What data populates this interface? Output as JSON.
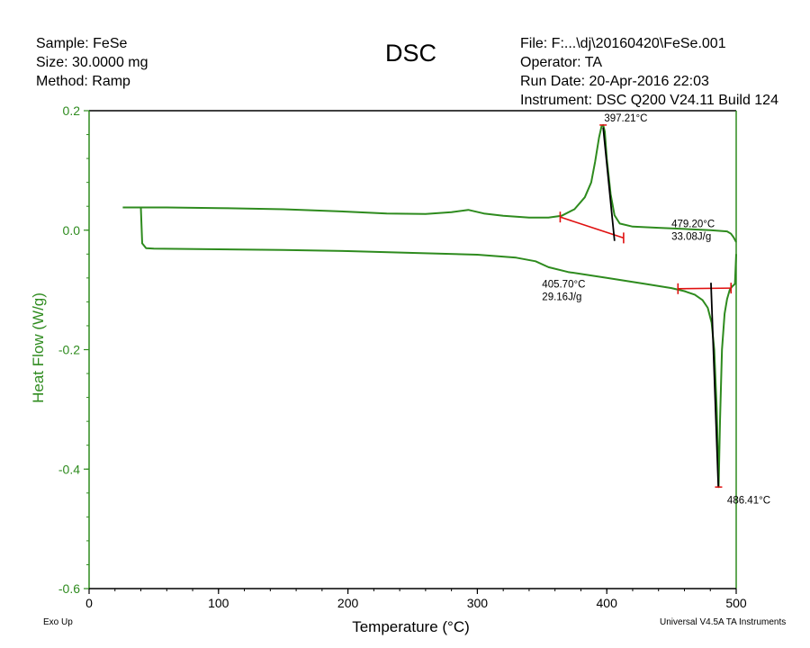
{
  "header": {
    "sample": "Sample: FeSe",
    "size": "Size:  30.0000 mg",
    "method": "Method: Ramp",
    "file": "File: F:...\\dj\\20160420\\FeSe.001",
    "operator": "Operator: TA",
    "run_date": "Run Date: 20-Apr-2016 22:03",
    "instrument": "Instrument: DSC Q200 V24.11 Build 124"
  },
  "footer": {
    "exo": "Exo Up",
    "software": "Universal V4.5A TA Instruments"
  },
  "colors": {
    "curve": "#2e8b1e",
    "axis": "#2e8b1e",
    "baseline": "#e01010",
    "tangent": "#000000"
  },
  "chart_data": {
    "type": "line",
    "title": "DSC",
    "xlabel": "Temperature (°C)",
    "ylabel": "Heat Flow (W/g)",
    "xlim": [
      0,
      500
    ],
    "ylim": [
      -0.6,
      0.2
    ],
    "xticks": [
      0,
      100,
      200,
      300,
      400,
      500
    ],
    "yticks": [
      0.2,
      0.0,
      -0.2,
      -0.4,
      -0.6
    ],
    "xtick_labels": [
      "0",
      "100",
      "200",
      "300",
      "400",
      "500"
    ],
    "ytick_labels": [
      "0.2",
      "0.0",
      "-0.2",
      "-0.4",
      "-0.6"
    ],
    "grid": false,
    "series": [
      {
        "x": [
          26,
          40,
          60,
          100,
          150,
          200,
          230,
          260,
          280,
          293,
          305,
          320,
          340,
          355,
          365,
          375,
          383,
          388,
          391,
          394,
          396,
          397.2,
          398.5,
          400,
          403,
          406,
          410,
          420,
          440,
          460,
          480,
          493,
          496,
          498,
          500
        ],
        "y": [
          0.038,
          0.038,
          0.038,
          0.037,
          0.035,
          0.031,
          0.028,
          0.027,
          0.03,
          0.034,
          0.028,
          0.024,
          0.021,
          0.021,
          0.024,
          0.035,
          0.055,
          0.08,
          0.115,
          0.155,
          0.174,
          0.176,
          0.165,
          0.12,
          0.06,
          0.025,
          0.011,
          0.006,
          0.004,
          0.002,
          0.0,
          -0.002,
          -0.006,
          -0.012,
          -0.02
        ]
      },
      {
        "x": [
          40,
          41,
          44,
          50,
          100,
          150,
          200,
          250,
          300,
          330,
          345,
          355,
          370,
          400,
          430,
          450,
          460,
          468,
          474,
          478,
          481,
          483,
          485,
          486.41,
          487.5,
          489,
          491,
          493,
          495,
          497,
          499,
          500
        ],
        "y": [
          0.038,
          -0.022,
          -0.03,
          -0.031,
          -0.032,
          -0.033,
          -0.035,
          -0.038,
          -0.041,
          -0.046,
          -0.052,
          -0.062,
          -0.07,
          -0.08,
          -0.09,
          -0.097,
          -0.102,
          -0.108,
          -0.117,
          -0.13,
          -0.155,
          -0.2,
          -0.3,
          -0.43,
          -0.32,
          -0.2,
          -0.14,
          -0.115,
          -0.1,
          -0.094,
          -0.09,
          -0.04
        ]
      }
    ],
    "baselines": [
      {
        "x1": 364,
        "y1": 0.022,
        "x2": 413,
        "y2": -0.013
      },
      {
        "x1": 455,
        "y1": -0.098,
        "x2": 496,
        "y2": -0.097
      }
    ],
    "tangents": [
      {
        "x1": 397.2,
        "y1": 0.172,
        "x2": 406,
        "y2": -0.018
      },
      {
        "x1": 480.5,
        "y1": -0.088,
        "x2": 486.2,
        "y2": -0.43
      }
    ],
    "annotations": [
      {
        "text": "397.21°C",
        "x": 398,
        "y": 0.182
      },
      {
        "text": "479.20°C",
        "x": 450,
        "y": 0.005
      },
      {
        "text": "33.08J/g",
        "x": 450,
        "y": -0.016
      },
      {
        "text": "405.70°C",
        "x": 350,
        "y": -0.096
      },
      {
        "text": "29.16J/g",
        "x": 350,
        "y": -0.117
      },
      {
        "text": "486.41°C",
        "x": 493,
        "y": -0.458
      }
    ]
  }
}
